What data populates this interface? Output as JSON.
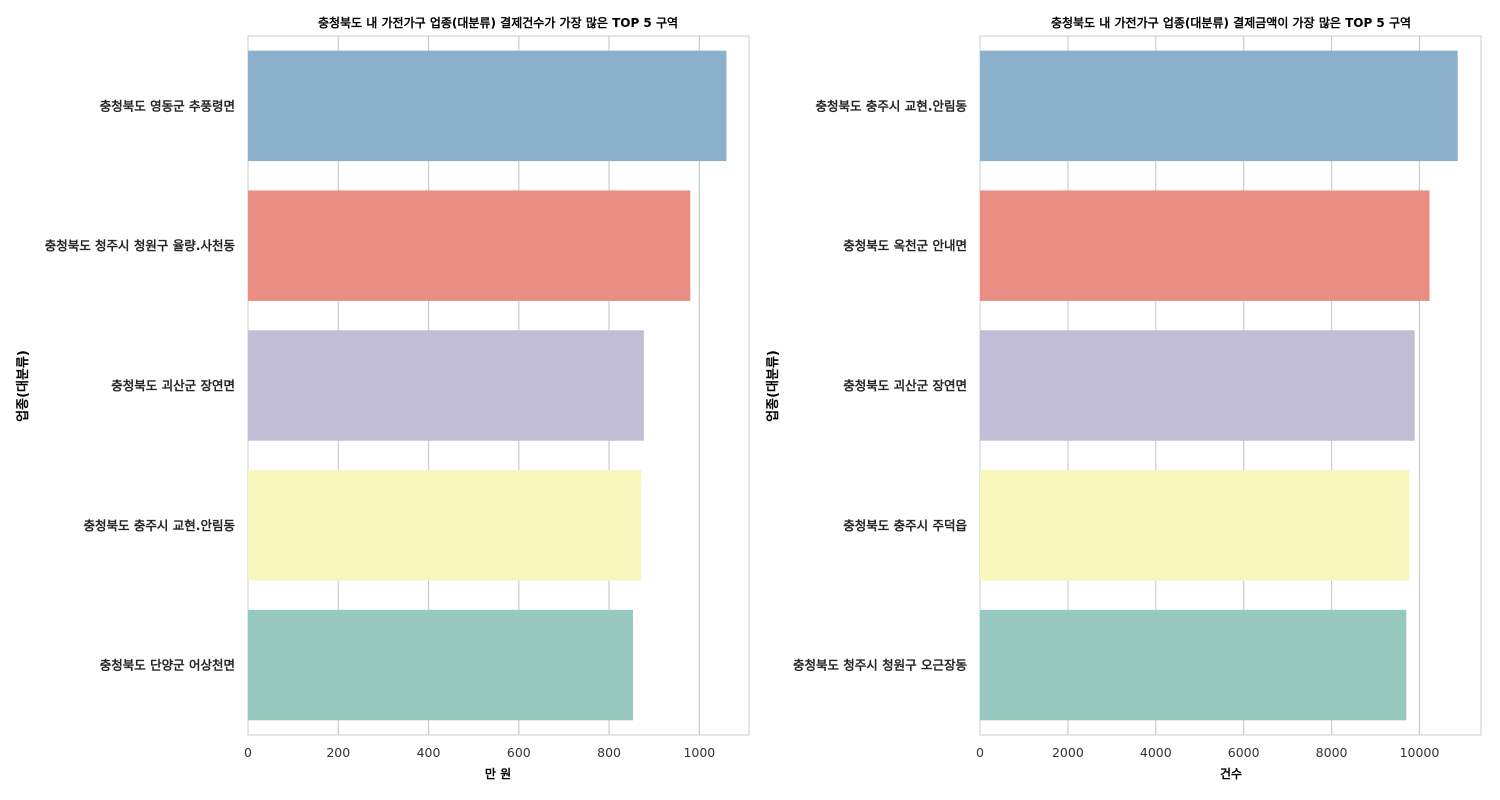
{
  "chart_data": [
    {
      "type": "bar",
      "orientation": "horizontal",
      "title": "충청북도 내 가전가구 업종(대분류) 결제건수가 가장 많은 TOP 5 구역",
      "xlabel": "만 원",
      "ylabel": "업종(대분류)",
      "categories": [
        "충청북도 영동군 추풍령면",
        "충청북도 청주시 청원구 율량.사천동",
        "충청북도 괴산군 장연면",
        "충청북도 충주시 교현.안림동",
        "충청북도 단양군 어상천면"
      ],
      "values": [
        1060,
        980,
        877,
        871,
        853
      ],
      "colors": [
        "#8bb0cb",
        "#ea8e84",
        "#c1bdd6",
        "#f6f6bd",
        "#98c9c0"
      ],
      "xlim": [
        0,
        1110
      ],
      "xticks": [
        0,
        200,
        400,
        600,
        800,
        1000
      ],
      "xtick_labels": [
        "0",
        "200",
        "400",
        "600",
        "800",
        "1000"
      ],
      "grid": "x"
    },
    {
      "type": "bar",
      "orientation": "horizontal",
      "title": "충청북도 내 가전가구 업종(대분류) 결제금액이 가장 많은 TOP 5 구역",
      "xlabel": "건수",
      "ylabel": "업종(대분류)",
      "categories": [
        "충청북도 충주시 교현.안림동",
        "충청북도 옥천군 안내면",
        "충청북도 괴산군 장연면",
        "충청북도 충주시 주덕읍",
        "충청북도 청주시 청원구 오근장동"
      ],
      "values": [
        10870,
        10230,
        9890,
        9770,
        9700
      ],
      "colors": [
        "#8bb0cb",
        "#ea8e84",
        "#c1bdd6",
        "#f6f6bd",
        "#98c9c0"
      ],
      "xlim": [
        0,
        11400
      ],
      "xticks": [
        0,
        2000,
        4000,
        6000,
        8000,
        10000
      ],
      "xtick_labels": [
        "0",
        "2000",
        "4000",
        "6000",
        "8000",
        "10000"
      ],
      "grid": "x"
    }
  ]
}
